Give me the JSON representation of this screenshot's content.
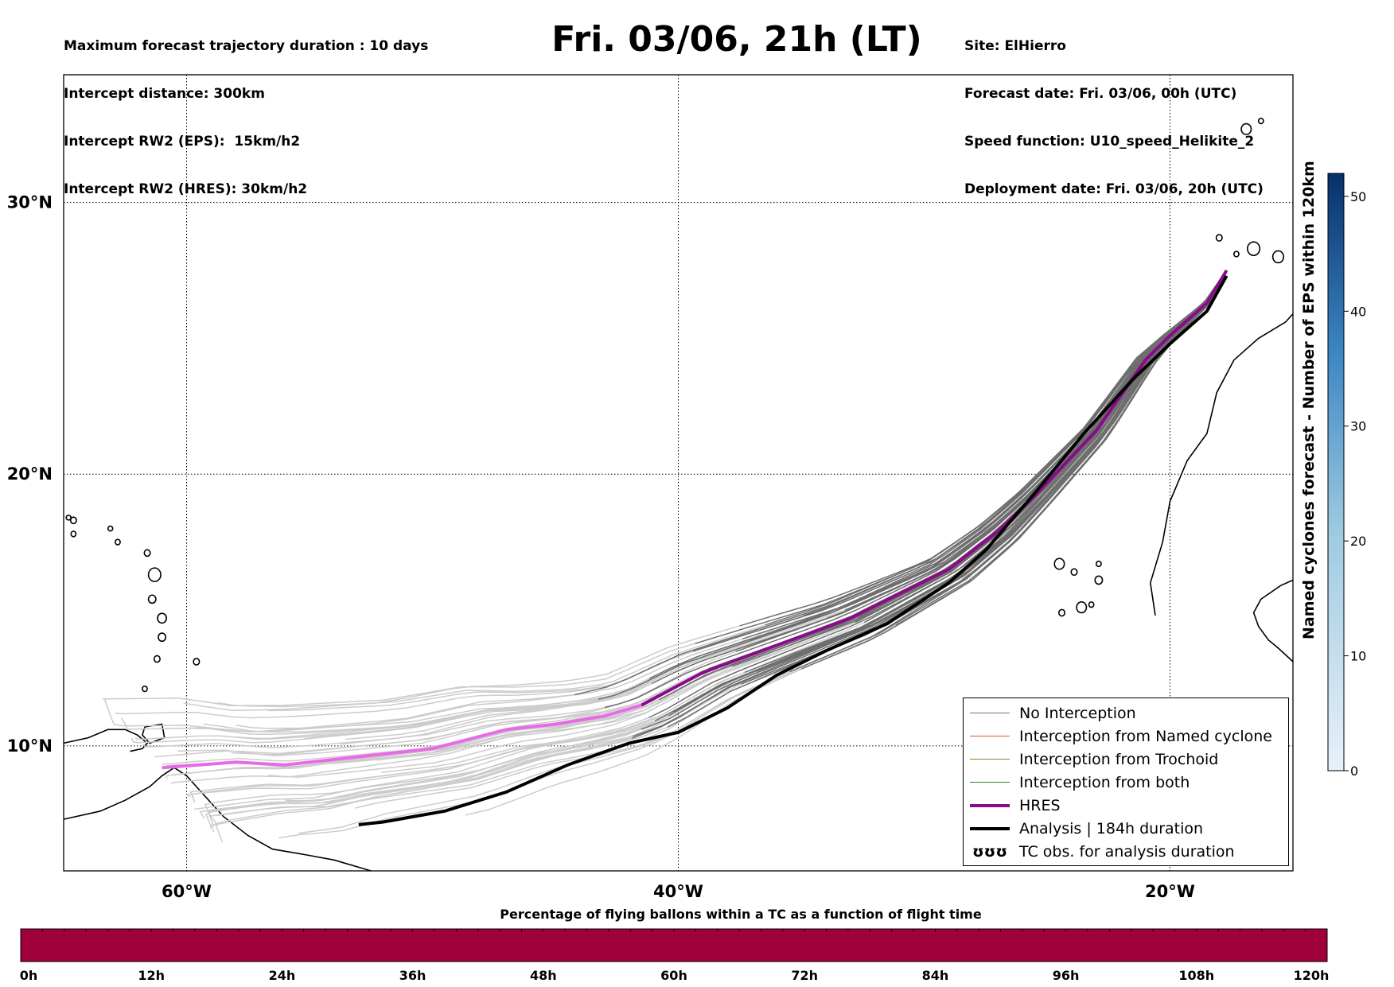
{
  "header_left": [
    "Maximum forecast trajectory duration : 10 days",
    "Intercept distance: 300km",
    "Intercept RW2 (EPS):  15km/h2",
    "Intercept RW2 (HRES): 30km/h2"
  ],
  "header_right": [
    "Site: ElHierro",
    "Forecast date: Fri. 03/06, 00h (UTC)",
    "Speed function: U10_speed_Helikite_2",
    "Deployment date: Fri. 03/06, 20h (UTC)"
  ],
  "title": "Fri. 03/06, 21h (LT)",
  "map": {
    "lon_range": [
      -65,
      -15
    ],
    "lat_range": [
      5.4,
      34.7
    ],
    "lat_labels": [
      "30°N",
      "20°N",
      "10°N"
    ],
    "lat_values": [
      30,
      20,
      10
    ],
    "lon_labels": [
      "60°W",
      "40°W",
      "20°W"
    ],
    "lon_values": [
      -60,
      -40,
      -20
    ]
  },
  "legend": [
    {
      "label": "No Interception",
      "color": "#777777",
      "style": "thin"
    },
    {
      "label": "Interception from Named cyclone",
      "color": "#e0571b",
      "style": "thin"
    },
    {
      "label": "Interception from Trochoid",
      "color": "#8a8a1a",
      "style": "thin"
    },
    {
      "label": "Interception from both",
      "color": "#2a8a2a",
      "style": "thin"
    },
    {
      "label": "HRES",
      "color": "#8b0a8b",
      "style": "thick"
    },
    {
      "label": "Analysis | 184h duration",
      "color": "#000000",
      "style": "thick"
    },
    {
      "label": "TC obs. for analysis duration",
      "color": "#000000",
      "style": "symbol",
      "symbol": "ʊʊʊ"
    }
  ],
  "colorbar": {
    "title": "Named cyclones forecast - Number of EPS within 120km",
    "ticks": [
      0,
      10,
      20,
      30,
      40,
      50
    ],
    "max": 52,
    "color_low": "#e8f1fa",
    "color_high": "#08306b"
  },
  "bottom_bar": {
    "title": "Percentage of flying ballons within a TC as a function of flight time",
    "ticks": [
      "0h",
      "12h",
      "24h",
      "36h",
      "48h",
      "60h",
      "72h",
      "84h",
      "96h",
      "108h",
      "120h"
    ],
    "color": "#a0003a"
  },
  "chart_data": {
    "type": "line",
    "xlabel": "",
    "ylabel": "",
    "series": [
      {
        "name": "HRES",
        "points": [
          [
            -17.7,
            27.5
          ],
          [
            -18.5,
            26.3
          ],
          [
            -20,
            25.1
          ],
          [
            -21,
            24.2
          ],
          [
            -23,
            21.6
          ],
          [
            -25.5,
            19.2
          ],
          [
            -27,
            17.9
          ],
          [
            -29,
            16.5
          ],
          [
            -31,
            15.6
          ],
          [
            -33,
            14.7
          ],
          [
            -36,
            13.7
          ],
          [
            -39,
            12.7
          ],
          [
            -41.5,
            11.5
          ],
          [
            -43,
            11.1
          ],
          [
            -45,
            10.8
          ],
          [
            -47,
            10.6
          ],
          [
            -50,
            9.9
          ],
          [
            -54,
            9.5
          ],
          [
            -56,
            9.3
          ],
          [
            -58,
            9.4
          ],
          [
            -61,
            9.2
          ]
        ]
      },
      {
        "name": "Analysis | 184h duration",
        "points": [
          [
            -17.7,
            27.3
          ],
          [
            -18.5,
            26
          ],
          [
            -20,
            24.8
          ],
          [
            -21.5,
            23.5
          ],
          [
            -23.5,
            21.5
          ],
          [
            -25.5,
            19.3
          ],
          [
            -27.5,
            17.2
          ],
          [
            -29,
            16
          ],
          [
            -31.5,
            14.5
          ],
          [
            -34,
            13.5
          ],
          [
            -36,
            12.6
          ],
          [
            -38,
            11.4
          ],
          [
            -40,
            10.5
          ],
          [
            -42,
            10.1
          ],
          [
            -44.5,
            9.3
          ],
          [
            -47,
            8.3
          ],
          [
            -49.5,
            7.6
          ],
          [
            -52,
            7.2
          ],
          [
            -53,
            7.1
          ]
        ]
      }
    ]
  }
}
